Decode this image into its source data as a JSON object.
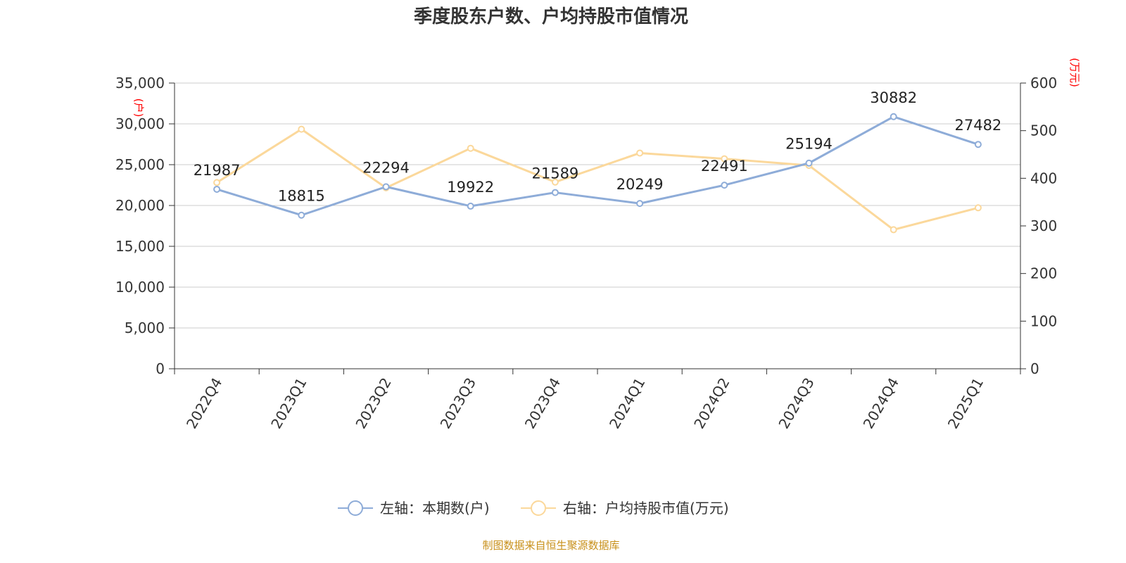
{
  "chart_data": {
    "type": "line",
    "title": "季度股东户数、户均持股市值情况",
    "categories": [
      "2022Q4",
      "2023Q1",
      "2023Q2",
      "2023Q3",
      "2023Q4",
      "2024Q1",
      "2024Q2",
      "2024Q3",
      "2024Q4",
      "2025Q1"
    ],
    "series": [
      {
        "name": "左轴：本期数(户)",
        "axis": "left",
        "color": "#8eacd8",
        "values": [
          21987,
          18815,
          22294,
          19922,
          21589,
          20249,
          22491,
          25194,
          30882,
          27482
        ],
        "show_labels": true
      },
      {
        "name": "右轴：户均持股市值(万元)",
        "axis": "right",
        "color": "#fbd89b",
        "values": [
          391,
          503,
          380,
          463,
          392,
          453,
          441,
          427,
          292,
          338
        ],
        "show_labels": false
      }
    ],
    "left_axis": {
      "unit": "(户)",
      "ylim": [
        0,
        35000
      ],
      "ticks": [
        0,
        5000,
        10000,
        15000,
        20000,
        25000,
        30000,
        35000
      ],
      "tick_labels": [
        "0",
        "5,000",
        "10,000",
        "15,000",
        "20,000",
        "25,000",
        "30,000",
        "35,000"
      ]
    },
    "right_axis": {
      "unit": "(万元)",
      "ylim": [
        0,
        600
      ],
      "ticks": [
        0,
        100,
        200,
        300,
        400,
        500,
        600
      ],
      "tick_labels": [
        "0",
        "100",
        "200",
        "300",
        "400",
        "500",
        "600"
      ]
    },
    "grid": true,
    "legend_position": "bottom-center",
    "source": "制图数据来自恒生聚源数据库",
    "colors": {
      "grid": "#cccccc",
      "axis": "#333333",
      "unit": "#ff0000",
      "source": "#c8901a"
    }
  }
}
